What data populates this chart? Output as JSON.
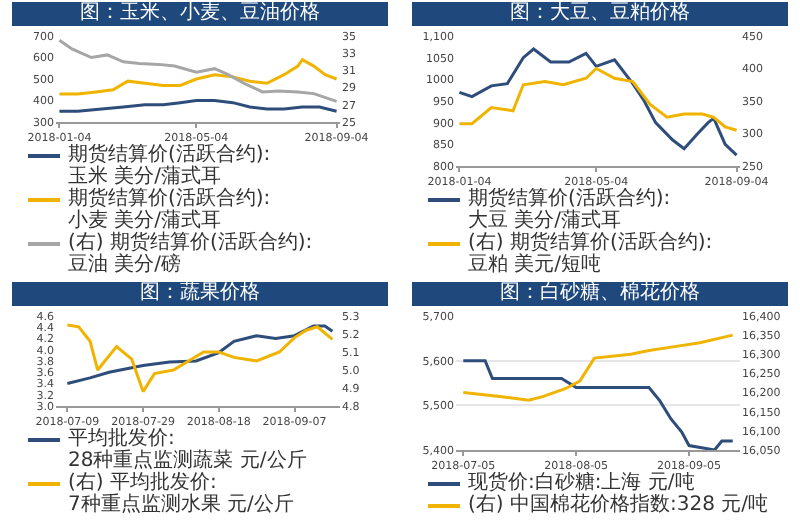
{
  "chart_data": [
    {
      "type": "line",
      "title": "图：玉米、小麦、豆油价格",
      "legend": "bottom",
      "xlim": [
        "2018-01-01",
        "2018-09-07"
      ],
      "xticks": [
        "2018-01-04",
        "2018-05-04",
        "2018-09-04"
      ],
      "ylim": [
        300,
        700
      ],
      "yticks": [
        300,
        400,
        500,
        600,
        700
      ],
      "y2lim": [
        25,
        35
      ],
      "y2ticks": [
        25,
        27,
        29,
        31,
        33,
        35
      ],
      "series": [
        {
          "name": "期货结算价(活跃合约):玉米 美分/蒲式耳",
          "color": "#2e4d7b",
          "x": [
            "2018-01-04",
            "2018-01-20",
            "2018-02-10",
            "2018-03-01",
            "2018-03-20",
            "2018-04-05",
            "2018-04-20",
            "2018-05-04",
            "2018-05-20",
            "2018-06-05",
            "2018-06-20",
            "2018-07-05",
            "2018-07-20",
            "2018-08-05",
            "2018-08-20",
            "2018-09-04"
          ],
          "values": [
            350,
            350,
            360,
            370,
            380,
            380,
            390,
            400,
            400,
            390,
            370,
            360,
            360,
            370,
            370,
            350
          ]
        },
        {
          "name": "期货结算价(活跃合约):小麦 美分/蒲式耳",
          "color": "#f0b400",
          "x": [
            "2018-01-04",
            "2018-01-20",
            "2018-02-05",
            "2018-02-20",
            "2018-03-05",
            "2018-03-20",
            "2018-04-05",
            "2018-04-20",
            "2018-05-04",
            "2018-05-20",
            "2018-06-05",
            "2018-06-20",
            "2018-07-05",
            "2018-07-20",
            "2018-08-01",
            "2018-08-05",
            "2018-08-15",
            "2018-08-25",
            "2018-09-04"
          ],
          "values": [
            430,
            430,
            440,
            450,
            490,
            480,
            470,
            470,
            500,
            520,
            510,
            490,
            480,
            520,
            560,
            590,
            560,
            520,
            500
          ]
        },
        {
          "name": "(右) 期货结算价(活跃合约):豆油 美分/磅",
          "color": "#a6a6a6",
          "axis": "y2",
          "x": [
            "2018-01-04",
            "2018-01-15",
            "2018-02-01",
            "2018-02-15",
            "2018-03-01",
            "2018-03-15",
            "2018-04-01",
            "2018-04-15",
            "2018-05-04",
            "2018-05-20",
            "2018-06-01",
            "2018-06-15",
            "2018-07-01",
            "2018-07-15",
            "2018-08-01",
            "2018-08-15",
            "2018-09-04"
          ],
          "values": [
            34.5,
            33.5,
            32.5,
            32.8,
            32,
            31.8,
            31.7,
            31.5,
            30.8,
            31.2,
            30.5,
            29.5,
            28.5,
            28.6,
            28.5,
            28.3,
            27.4
          ]
        }
      ]
    },
    {
      "type": "line",
      "title": "图：大豆、豆粕价格",
      "legend": "bottom",
      "xlim": [
        "2018-01-01",
        "2018-09-07"
      ],
      "xticks": [
        "2018-01-04",
        "2018-05-04",
        "2018-09-04"
      ],
      "ylim": [
        800,
        1100
      ],
      "yticks": [
        800,
        850,
        900,
        950,
        1000,
        1050,
        {
          "value": 1100,
          "label": "1,100"
        }
      ],
      "y2lim": [
        250,
        450
      ],
      "y2ticks": [
        250,
        300,
        350,
        400,
        450
      ],
      "series": [
        {
          "name": "期货结算价(活跃合约):大豆 美分/蒲式耳",
          "color": "#2e4d7b",
          "x": [
            "2018-01-04",
            "2018-01-15",
            "2018-02-01",
            "2018-02-15",
            "2018-03-01",
            "2018-03-10",
            "2018-03-25",
            "2018-04-10",
            "2018-04-25",
            "2018-05-04",
            "2018-05-20",
            "2018-06-05",
            "2018-06-15",
            "2018-06-25",
            "2018-07-10",
            "2018-07-20",
            "2018-08-01",
            "2018-08-10",
            "2018-08-15",
            "2018-08-25",
            "2018-09-04"
          ],
          "values": [
            970,
            960,
            985,
            990,
            1050,
            1070,
            1040,
            1040,
            1060,
            1030,
            1045,
            990,
            950,
            900,
            860,
            840,
            875,
            900,
            910,
            850,
            825
          ]
        },
        {
          "name": "(右) 期货结算价(活跃合约):豆粕 美元/短吨",
          "color": "#f0b400",
          "axis": "y2",
          "x": [
            "2018-01-04",
            "2018-01-15",
            "2018-02-01",
            "2018-02-20",
            "2018-03-01",
            "2018-03-20",
            "2018-04-05",
            "2018-04-25",
            "2018-05-04",
            "2018-05-20",
            "2018-06-05",
            "2018-06-20",
            "2018-07-05",
            "2018-07-20",
            "2018-08-05",
            "2018-08-15",
            "2018-08-25",
            "2018-09-04"
          ],
          "values": [
            315,
            315,
            340,
            335,
            375,
            380,
            375,
            385,
            400,
            385,
            380,
            345,
            325,
            330,
            330,
            325,
            310,
            305
          ]
        }
      ]
    },
    {
      "type": "line",
      "title": "图：蔬果价格",
      "legend": "bottom",
      "xlim": [
        "2018-07-06",
        "2018-09-19"
      ],
      "xticks": [
        "2018-07-09",
        "2018-07-29",
        "2018-08-18",
        "2018-09-07"
      ],
      "ylim": [
        3.0,
        4.6
      ],
      "yticks": [
        {
          "value": 3.0,
          "label": "3.0"
        },
        3.2,
        3.4,
        3.6,
        3.8,
        {
          "value": 4.0,
          "label": "4.0"
        },
        4.2,
        4.4,
        4.6
      ],
      "y2lim": [
        4.8,
        5.3
      ],
      "y2ticks": [
        4.8,
        4.9,
        {
          "value": 5.0,
          "label": "5.0"
        },
        5.1,
        5.2,
        5.3
      ],
      "series": [
        {
          "name": "平均批发价:28种重点监测蔬菜 元/公斤",
          "color": "#2e4d7b",
          "x": [
            "2018-07-09",
            "2018-07-15",
            "2018-07-20",
            "2018-07-29",
            "2018-08-05",
            "2018-08-12",
            "2018-08-18",
            "2018-08-22",
            "2018-08-28",
            "2018-09-02",
            "2018-09-07",
            "2018-09-12",
            "2018-09-15",
            "2018-09-17"
          ],
          "values": [
            3.4,
            3.5,
            3.6,
            3.72,
            3.78,
            3.8,
            3.95,
            4.15,
            4.25,
            4.2,
            4.25,
            4.42,
            4.42,
            4.33
          ]
        },
        {
          "name": "(右) 平均批发价:7种重点监测水果 元/公斤",
          "color": "#f0b400",
          "axis": "y2",
          "x": [
            "2018-07-09",
            "2018-07-12",
            "2018-07-15",
            "2018-07-17",
            "2018-07-22",
            "2018-07-26",
            "2018-07-29",
            "2018-08-01",
            "2018-08-06",
            "2018-08-10",
            "2018-08-14",
            "2018-08-18",
            "2018-08-22",
            "2018-08-28",
            "2018-09-03",
            "2018-09-07",
            "2018-09-10",
            "2018-09-13",
            "2018-09-17"
          ],
          "values": [
            5.25,
            5.24,
            5.16,
            5.0,
            5.13,
            5.06,
            4.88,
            4.98,
            5.0,
            5.05,
            5.1,
            5.1,
            5.07,
            5.05,
            5.1,
            5.18,
            5.22,
            5.24,
            5.17
          ]
        }
      ]
    },
    {
      "type": "line",
      "title": "图：白砂糖、棉花价格",
      "legend": "bottom",
      "grid": "y",
      "xlim": [
        "2018-07-03",
        "2018-09-19"
      ],
      "xticks": [
        "2018-07-05",
        "2018-08-05",
        "2018-09-05"
      ],
      "ylim": [
        5400,
        5700
      ],
      "yticks": [
        {
          "value": 5400,
          "label": "5,400"
        },
        {
          "value": 5500,
          "label": "5,500"
        },
        {
          "value": 5600,
          "label": "5,600"
        },
        {
          "value": 5700,
          "label": "5,700"
        }
      ],
      "y2lim": [
        16050,
        16400
      ],
      "y2ticks": [
        {
          "value": 16050,
          "label": "16,050"
        },
        {
          "value": 16100,
          "label": "16,100"
        },
        {
          "value": 16150,
          "label": "16,150"
        },
        {
          "value": 16200,
          "label": "16,200"
        },
        {
          "value": 16250,
          "label": "16,250"
        },
        {
          "value": 16300,
          "label": "16,300"
        },
        {
          "value": 16350,
          "label": "16,350"
        },
        {
          "value": 16400,
          "label": "16,400"
        }
      ],
      "series": [
        {
          "name": "现货价:白砂糖:上海 元/吨",
          "color": "#2e4d7b",
          "x": [
            "2018-07-05",
            "2018-07-11",
            "2018-07-13",
            "2018-08-01",
            "2018-08-05",
            "2018-08-25",
            "2018-08-28",
            "2018-08-31",
            "2018-09-03",
            "2018-09-05",
            "2018-09-12",
            "2018-09-14",
            "2018-09-17"
          ],
          "values": [
            5600,
            5600,
            5560,
            5560,
            5540,
            5540,
            5510,
            5470,
            5440,
            5410,
            5400,
            5420,
            5420
          ]
        },
        {
          "name": "(右) 中国棉花价格指数:328 元/吨",
          "color": "#f0b400",
          "axis": "y2",
          "x": [
            "2018-07-05",
            "2018-07-15",
            "2018-07-23",
            "2018-07-27",
            "2018-08-02",
            "2018-08-06",
            "2018-08-10",
            "2018-08-20",
            "2018-08-25",
            "2018-09-01",
            "2018-09-08",
            "2018-09-17"
          ],
          "values": [
            16200,
            16190,
            16180,
            16190,
            16210,
            16230,
            16290,
            16300,
            16310,
            16320,
            16330,
            16350
          ]
        }
      ]
    }
  ]
}
